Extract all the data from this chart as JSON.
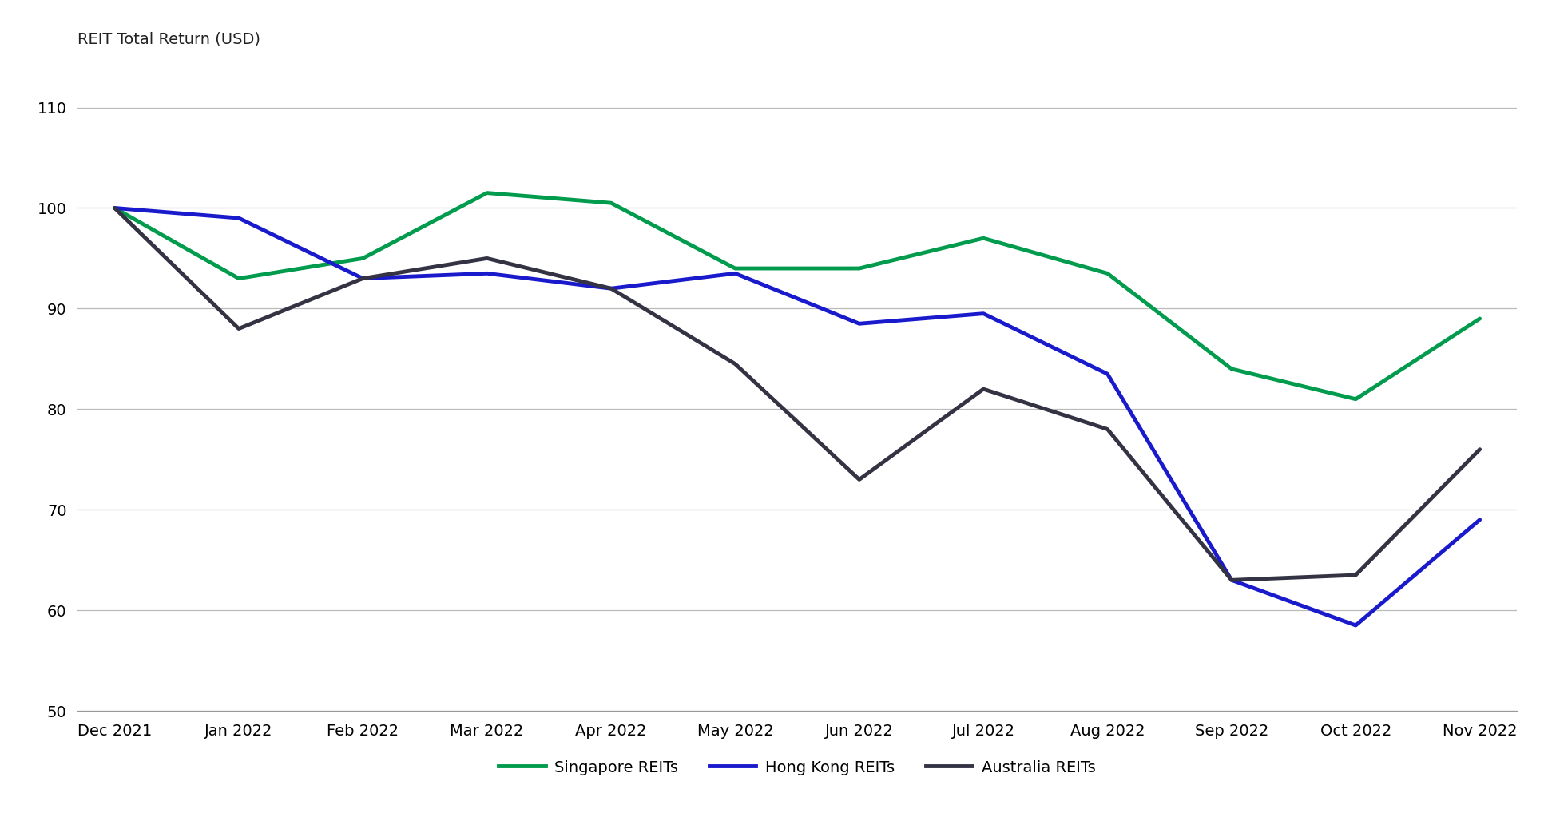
{
  "title": "REIT Total Return (USD)",
  "x_labels": [
    "Dec 2021",
    "Jan 2022",
    "Feb 2022",
    "Mar 2022",
    "Apr 2022",
    "May 2022",
    "Jun 2022",
    "Jul 2022",
    "Aug 2022",
    "Sep 2022",
    "Oct 2022",
    "Nov 2022"
  ],
  "singapore": [
    100,
    93,
    95,
    101.5,
    100.5,
    94,
    94,
    97,
    93.5,
    84,
    81,
    89
  ],
  "hongkong": [
    100,
    99,
    93,
    93.5,
    92,
    93.5,
    88.5,
    89.5,
    83.5,
    63,
    58.5,
    69
  ],
  "australia": [
    100,
    88,
    93,
    95,
    92,
    84.5,
    73,
    82,
    78,
    63,
    63.5,
    76
  ],
  "singapore_color": "#009B4D",
  "hongkong_color": "#1A1ACD",
  "australia_color": "#333344",
  "line_width": 3.5,
  "ylim": [
    50,
    115
  ],
  "yticks": [
    50,
    60,
    70,
    80,
    90,
    100,
    110
  ],
  "legend_labels": [
    "Singapore REITs",
    "Hong Kong REITs",
    "Australia REITs"
  ],
  "bg_color": "#FFFFFF",
  "grid_color": "#BBBBBB"
}
